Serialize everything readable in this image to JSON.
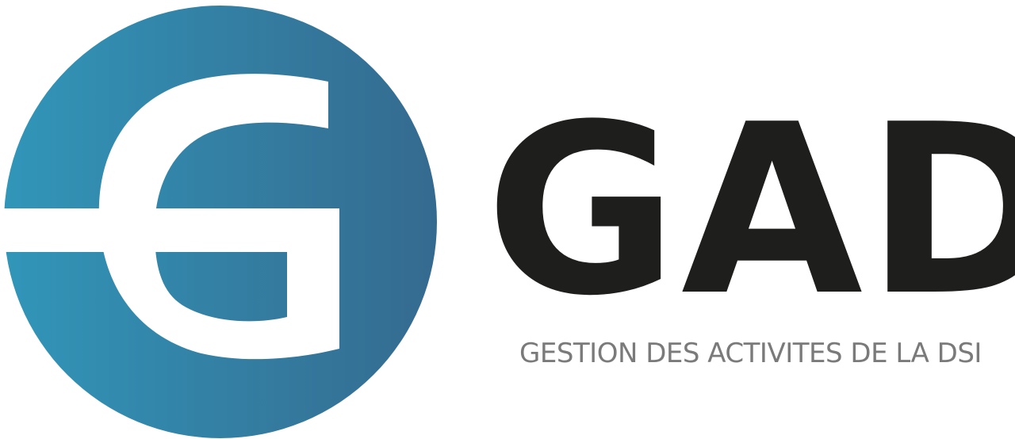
{
  "logo": {
    "icon": "gad-g-circle-emblem-icon",
    "gradient_start": "#3196B9",
    "gradient_end": "#356A8F",
    "letter_color": "#FFFFFF"
  },
  "brand": {
    "name": "GAD",
    "name_color": "#1E1E1C"
  },
  "tagline": {
    "text": "GESTION DES ACTIVITES DE LA DSI",
    "color": "#7A7A7A"
  }
}
